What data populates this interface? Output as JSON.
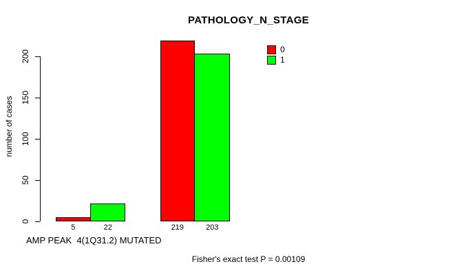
{
  "chart": {
    "title": "PATHOLOGY_N_STAGE",
    "y_label": "number of cases",
    "x_label": "AMP PEAK  4(1Q31.2) MUTATED",
    "footer": "Fisher's exact test P = 0.00109"
  },
  "legend": {
    "items": [
      {
        "label": "0",
        "color": "#ff0000"
      },
      {
        "label": "1",
        "color": "#00ff00"
      }
    ]
  },
  "chart_data": {
    "type": "bar",
    "title": "PATHOLOGY_N_STAGE",
    "xlabel": "AMP PEAK  4(1Q31.2) MUTATED",
    "ylabel": "number of cases",
    "ylim": [
      0,
      220
    ],
    "yticks": [
      0,
      50,
      100,
      150,
      200
    ],
    "grid": false,
    "legend_position": "top-right",
    "groups": 2,
    "series": [
      {
        "name": "0",
        "color": "#ff0000",
        "values": [
          5,
          219
        ]
      },
      {
        "name": "1",
        "color": "#00ff00",
        "values": [
          22,
          203
        ]
      }
    ],
    "bar_value_labels": [
      5,
      22,
      219,
      203
    ],
    "annotation": "Fisher's exact test P = 0.00109"
  }
}
